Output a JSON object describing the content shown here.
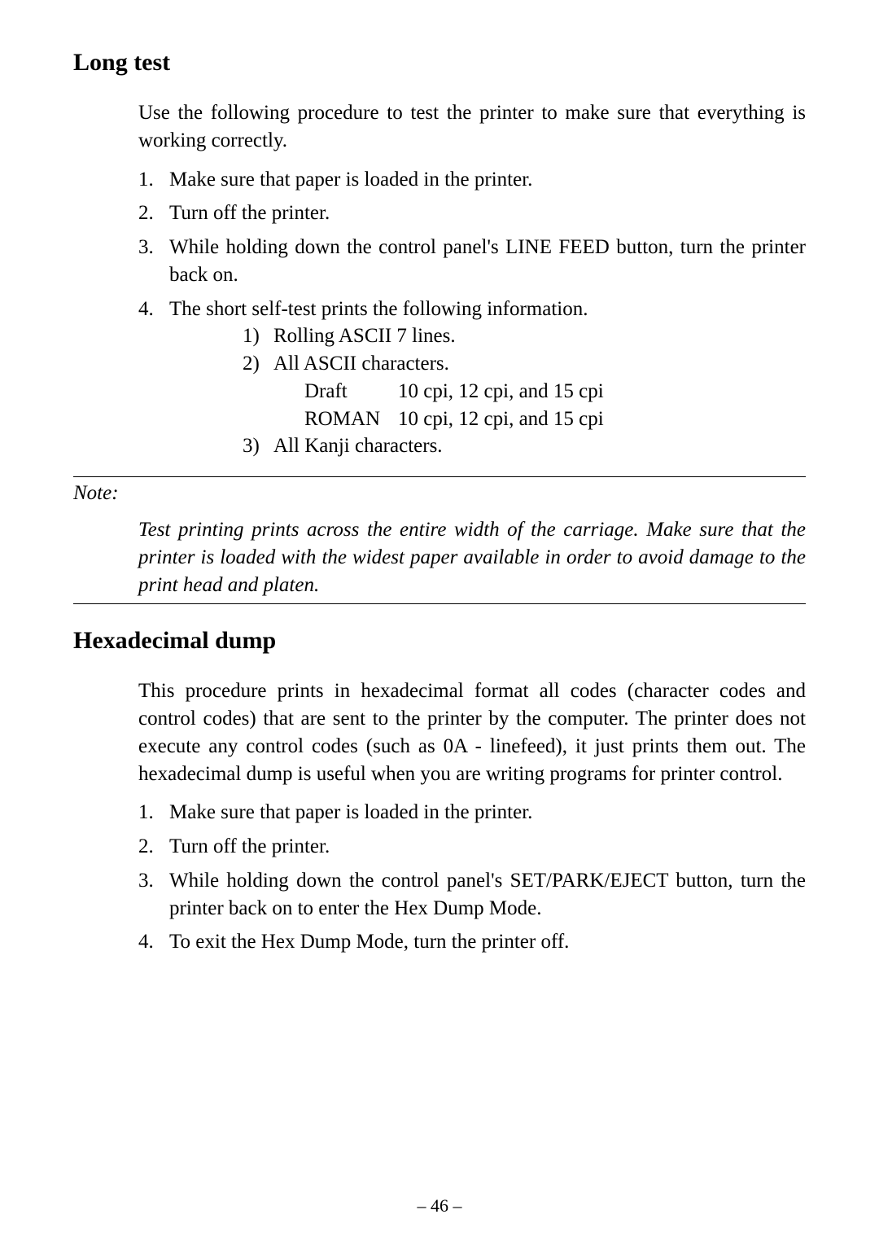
{
  "section1": {
    "title": "Long test",
    "intro": "Use the following procedure to test the printer to make sure that everything is working correctly.",
    "steps": [
      "Make sure that paper is loaded in the printer.",
      "Turn off the printer.",
      "While holding down the control panel's LINE FEED button, turn the printer back on.",
      "The short self-test prints the following information."
    ],
    "substeps": [
      "Rolling ASCII 7 lines.",
      "All ASCII characters.",
      "All Kanji characters."
    ],
    "spec_rows": [
      {
        "label": "Draft",
        "value": "10 cpi, 12 cpi, and 15 cpi"
      },
      {
        "label": "ROMAN",
        "value": "10 cpi, 12 cpi, and 15 cpi"
      }
    ]
  },
  "note": {
    "label": "Note:",
    "text": "Test printing prints across the entire width of the carriage. Make sure that the printer is loaded with the widest paper available in order to avoid damage to the print head and platen."
  },
  "section2": {
    "title": "Hexadecimal dump",
    "intro": "This procedure prints in hexadecimal format all codes (character codes and control codes) that are sent to the printer by the computer. The printer does not execute any control codes (such as 0A - linefeed), it just prints them out. The hexadecimal dump is useful when you are writing programs for printer control.",
    "steps": [
      "Make sure that paper is loaded in the printer.",
      "Turn off the printer.",
      "While holding down the control panel's SET/PARK/EJECT button, turn the printer back on to enter the Hex Dump Mode.",
      "To exit the Hex Dump Mode, turn the printer off."
    ]
  },
  "page_number": "– 46 –"
}
